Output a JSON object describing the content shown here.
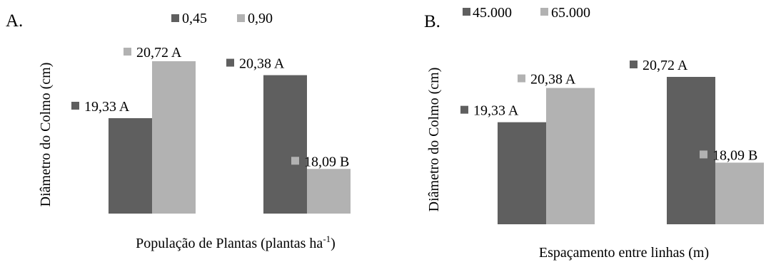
{
  "colors": {
    "dark": "#5f5f5f",
    "light": "#b2b2b2"
  },
  "chart_data": [
    {
      "type": "bar",
      "panel_label": "A.",
      "xlabel": "População de Plantas (plantas ha",
      "xlabel_sup": "-1",
      "xlabel_end": ")",
      "ylabel": "Diâmetro do Colmo (cm)",
      "ylim": [
        17,
        21.2
      ],
      "legend_placement": "top",
      "series": [
        {
          "name": "0,45",
          "values": [
            19.33,
            20.38
          ],
          "labels": [
            "19,33 A",
            "20,38 A"
          ]
        },
        {
          "name": "0,90",
          "values": [
            20.72,
            18.09
          ],
          "labels": [
            "20,72 A",
            "18,09 B"
          ]
        }
      ]
    },
    {
      "type": "bar",
      "panel_label": "B.",
      "xlabel": "Espaçamento entre linhas (m)",
      "ylabel": "Diâmetro do Colmo (cm)",
      "ylim": [
        16.2,
        21.2
      ],
      "legend_placement": "top",
      "series": [
        {
          "name": "45.000",
          "values": [
            19.33,
            20.72
          ],
          "labels": [
            "19,33 A",
            "20,72 A"
          ]
        },
        {
          "name": "65.000",
          "values": [
            20.38,
            18.09
          ],
          "labels": [
            "20,38 A",
            "18,09 B"
          ]
        }
      ]
    }
  ]
}
